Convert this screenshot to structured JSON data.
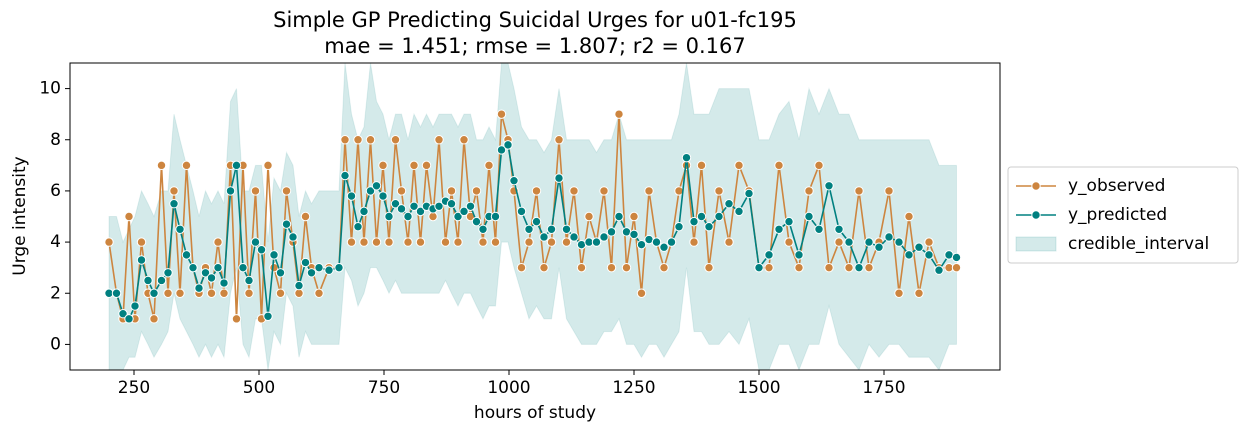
{
  "chart_data": {
    "type": "line",
    "title": "Simple GP Predicting Suicidal Urges for u01-fc195",
    "subtitle": "mae = 1.451; rmse = 1.807; r2 = 0.167",
    "x_label": "hours of study",
    "y_label": "Urge intensity",
    "xlim": [
      122,
      1982
    ],
    "ylim": [
      -1,
      11
    ],
    "xticks": [
      250,
      500,
      750,
      1000,
      1250,
      1500,
      1750
    ],
    "yticks": [
      0,
      2,
      4,
      6,
      8,
      10
    ],
    "legend": "outside right",
    "x": [
      200,
      215,
      228,
      240,
      252,
      265,
      278,
      290,
      305,
      318,
      330,
      342,
      355,
      368,
      380,
      393,
      405,
      418,
      430,
      443,
      455,
      468,
      480,
      493,
      505,
      518,
      530,
      543,
      555,
      568,
      580,
      593,
      605,
      620,
      640,
      660,
      672,
      685,
      698,
      710,
      723,
      735,
      748,
      760,
      773,
      785,
      798,
      810,
      823,
      835,
      848,
      860,
      873,
      885,
      898,
      910,
      923,
      935,
      948,
      960,
      973,
      985,
      998,
      1010,
      1025,
      1040,
      1055,
      1070,
      1085,
      1100,
      1115,
      1130,
      1145,
      1160,
      1175,
      1190,
      1205,
      1220,
      1235,
      1250,
      1265,
      1280,
      1295,
      1310,
      1325,
      1340,
      1355,
      1370,
      1385,
      1400,
      1420,
      1440,
      1460,
      1480,
      1500,
      1520,
      1540,
      1560,
      1580,
      1600,
      1620,
      1640,
      1660,
      1680,
      1700,
      1720,
      1740,
      1760,
      1780,
      1800,
      1820,
      1840,
      1860,
      1880,
      1895
    ],
    "series": [
      {
        "name": "y_observed",
        "color": "#cd853f",
        "values": [
          4,
          2,
          1,
          5,
          1,
          4,
          2,
          1,
          7,
          2,
          6,
          2,
          7,
          3,
          2,
          3,
          2,
          4,
          2,
          7,
          1,
          7,
          2,
          6,
          1,
          7,
          3,
          2,
          6,
          4,
          2,
          5,
          3,
          2,
          3,
          3,
          8,
          4,
          8,
          4,
          8,
          4,
          7,
          4,
          8,
          6,
          4,
          7,
          4,
          7,
          5,
          8,
          4,
          6,
          4,
          8,
          5,
          6,
          4,
          7,
          4,
          9,
          8,
          6,
          3,
          4,
          6,
          3,
          4,
          8,
          4,
          6,
          3,
          5,
          4,
          6,
          3,
          9,
          3,
          5,
          2,
          6,
          4,
          3,
          4,
          6,
          7,
          4,
          7,
          3,
          6,
          4,
          7,
          6,
          3,
          3,
          7,
          4,
          3,
          6,
          7,
          3,
          4,
          3,
          6,
          3,
          4,
          6,
          2,
          5,
          2,
          4,
          3,
          3,
          3
        ]
      },
      {
        "name": "y_predicted",
        "color": "#008080",
        "values": [
          2,
          2,
          1.2,
          1,
          1.5,
          3.3,
          2.5,
          2.0,
          2.5,
          2.8,
          5.5,
          4.5,
          3.5,
          3.0,
          2.2,
          2.8,
          2.6,
          3.0,
          2.4,
          6.0,
          7.0,
          3.0,
          2.5,
          4.0,
          3.7,
          1.1,
          3.5,
          2.8,
          4.7,
          4.2,
          2.3,
          3.2,
          2.8,
          3.0,
          2.9,
          3.0,
          6.6,
          5.8,
          4.6,
          5.2,
          6.0,
          6.2,
          5.8,
          5.0,
          5.5,
          5.3,
          5.0,
          5.4,
          5.2,
          5.4,
          5.3,
          5.4,
          5.6,
          5.5,
          5.0,
          5.2,
          5.4,
          4.8,
          4.5,
          5.0,
          5.0,
          7.6,
          7.8,
          6.4,
          5.2,
          4.5,
          4.8,
          4.2,
          4.5,
          6.5,
          4.5,
          4.2,
          3.9,
          4.0,
          4.0,
          4.2,
          4.4,
          5.0,
          4.4,
          4.3,
          3.9,
          4.1,
          4.0,
          3.8,
          4.0,
          4.6,
          7.3,
          4.8,
          5.0,
          4.6,
          5.0,
          5.5,
          5.2,
          5.9,
          3.0,
          3.5,
          4.5,
          4.8,
          3.5,
          5.0,
          4.5,
          6.2,
          4.5,
          4.0,
          3.0,
          4.0,
          3.8,
          4.2,
          4.0,
          3.5,
          3.8,
          3.5,
          2.9,
          3.5,
          3.4
        ]
      }
    ],
    "interval": {
      "name": "credible_interval",
      "color": "#008080",
      "lower": [
        -1,
        -1,
        -1,
        -0.5,
        -0.5,
        0.5,
        0,
        -0.5,
        0,
        0.5,
        2,
        1,
        0.5,
        0,
        -0.5,
        0,
        -0.5,
        0,
        -0.5,
        2,
        3,
        0,
        -0.5,
        1,
        1,
        -1,
        0.5,
        0,
        2,
        1.5,
        -0.5,
        0.5,
        0,
        0,
        0,
        0,
        3,
        2.5,
        1.5,
        2,
        3,
        3,
        2.5,
        2,
        2.5,
        2,
        2,
        2,
        2,
        2,
        2,
        2,
        2.5,
        2,
        1.5,
        2,
        2,
        1.5,
        1,
        1.5,
        1.5,
        4,
        4,
        3,
        2,
        1,
        1.5,
        1,
        1,
        3,
        1,
        0.5,
        0,
        0,
        0,
        0.5,
        0.5,
        1,
        0,
        0,
        -0.5,
        0,
        0,
        -0.5,
        0,
        0.5,
        3,
        0.5,
        0.5,
        0,
        0,
        0.5,
        0,
        1,
        -1,
        -1,
        0,
        0,
        -1,
        0,
        0,
        1.5,
        0,
        -0.5,
        -1,
        0,
        -0.5,
        0,
        0,
        -0.5,
        -0.5,
        -0.5,
        -1,
        0,
        0
      ],
      "upper": [
        5,
        5,
        4,
        4.5,
        5,
        6,
        5.5,
        5,
        6,
        6,
        9,
        8,
        7,
        6,
        5,
        6,
        5.5,
        6,
        5.5,
        9.5,
        10,
        6,
        6,
        7,
        7,
        4,
        6.5,
        6,
        7.5,
        7,
        5,
        6,
        5.5,
        6,
        6,
        6,
        11,
        9,
        8,
        8.5,
        11,
        9.5,
        9,
        8,
        9,
        9,
        8,
        9,
        8.5,
        9,
        8.5,
        9,
        9,
        9,
        8.5,
        9,
        9,
        8,
        8,
        8.5,
        8,
        11,
        11,
        10,
        8.5,
        8,
        8,
        7.5,
        8,
        10,
        8,
        8,
        8,
        8,
        7.5,
        8,
        8,
        9,
        8,
        8,
        8,
        8,
        8,
        8,
        8,
        9,
        11,
        9,
        9,
        9,
        10,
        10,
        10,
        10,
        8,
        8,
        9,
        9.5,
        8,
        10,
        9,
        10,
        9,
        9,
        8,
        8,
        8,
        8,
        8,
        8,
        8,
        8,
        7,
        7,
        7
      ]
    }
  }
}
